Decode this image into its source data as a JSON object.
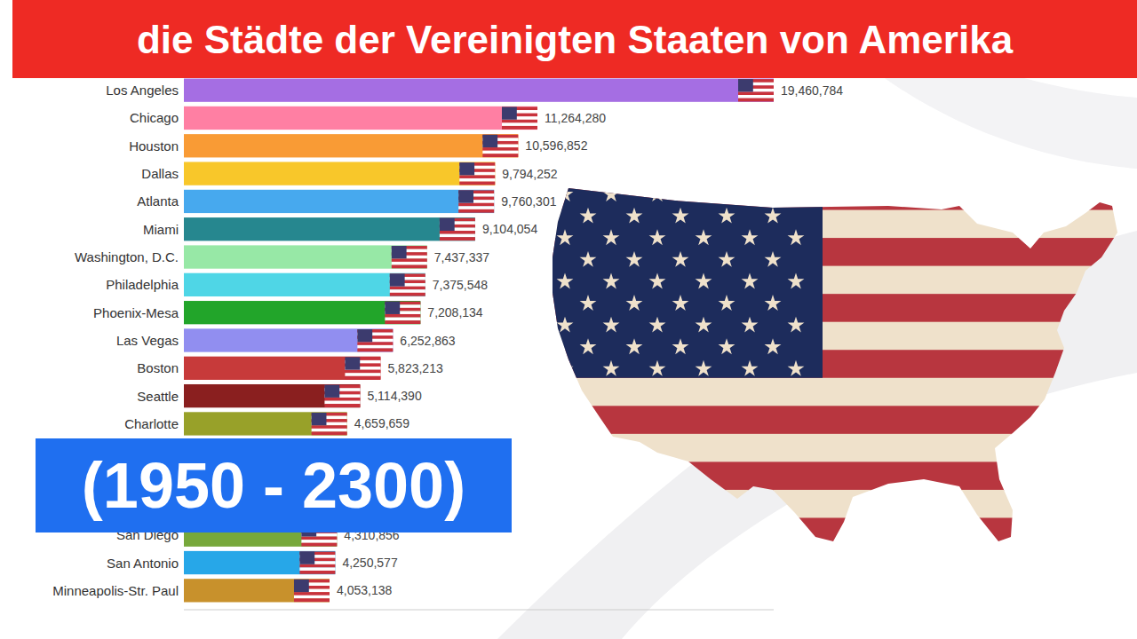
{
  "chart_data": {
    "type": "bar",
    "orientation": "horizontal",
    "title": "die Städte der Vereinigten Staaten von Amerika",
    "annotations": [
      "(1950 - 2300)"
    ],
    "categories": [
      "Los Angeles",
      "Chicago",
      "Houston",
      "Dallas",
      "Atlanta",
      "Miami",
      "Washington, D.C.",
      "Philadelphia",
      "Phoenix-Mesa",
      "Las Vegas",
      "Boston",
      "Seattle",
      "Charlotte",
      null,
      null,
      null,
      "San Diego",
      "San Antonio",
      "Minneapolis-Str. Paul"
    ],
    "values": [
      19460784,
      11264280,
      10596852,
      9794252,
      9760301,
      9104054,
      7437337,
      7375548,
      7208134,
      6252863,
      5823213,
      5114390,
      4659659,
      null,
      null,
      null,
      4310856,
      4250577,
      4053138
    ],
    "value_labels": [
      "19,460,784",
      "11,264,280",
      "10,596,852",
      "9,794,252",
      "9,760,301",
      "9,104,054",
      "7,437,337",
      "7,375,548",
      "7,208,134",
      "6,252,863",
      "5,823,213",
      "5,114,390",
      "4,659,659",
      null,
      null,
      null,
      "4,310,856",
      "4,250,577",
      "4,053,138"
    ],
    "colors": [
      "#a56ee3",
      "#ff7fa3",
      "#f99b35",
      "#f8c72a",
      "#47a9ee",
      "#26878f",
      "#97e8a6",
      "#4fd6e6",
      "#22a52a",
      "#918ef0",
      "#c73a3a",
      "#8a1f1f",
      "#98a129",
      null,
      null,
      null,
      "#77a83b",
      "#27a7e8",
      "#c8912c"
    ],
    "xlim": [
      -1000000,
      19460784
    ],
    "data_labels": true,
    "tick_labels": false,
    "grid": false
  }
}
